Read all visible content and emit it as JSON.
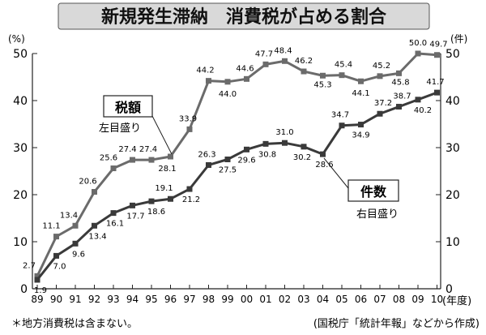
{
  "chart_data": {
    "type": "line",
    "title": "新規発生滞納　消費税が占める割合",
    "y_left_label": "(%)",
    "y_right_label": "(件)",
    "x_axis_unit": "(年度)",
    "ylim": [
      0,
      50
    ],
    "y_ticks": [
      "0",
      "10",
      "20",
      "30",
      "40",
      "50"
    ],
    "categories": [
      "89",
      "90",
      "91",
      "92",
      "93",
      "94",
      "95",
      "96",
      "97",
      "98",
      "99",
      "00",
      "01",
      "02",
      "03",
      "04",
      "05",
      "06",
      "07",
      "08",
      "09",
      "10"
    ],
    "series": [
      {
        "name": "税額",
        "axis_note": "左目盛り",
        "values": [
          2.7,
          11.1,
          13.4,
          20.6,
          25.6,
          27.4,
          27.4,
          28.1,
          33.9,
          44.2,
          44.0,
          44.6,
          47.7,
          48.4,
          46.2,
          45.3,
          45.4,
          44.1,
          45.2,
          45.8,
          50.0,
          49.7
        ],
        "labels": [
          "2.7",
          "11.1",
          "13.4",
          "20.6",
          "25.6",
          "27.4",
          "27.4",
          "28.1",
          "33.9",
          "44.2",
          "44.0",
          "44.6",
          "47.7",
          "48.4",
          "46.2",
          "45.3",
          "45.4",
          "44.1",
          "45.2",
          "45.8",
          "50.0",
          "49.7"
        ],
        "color": "#6b6b6b"
      },
      {
        "name": "件数",
        "axis_note": "右目盛り",
        "values": [
          1.9,
          7.0,
          9.6,
          13.4,
          16.1,
          17.7,
          18.6,
          19.1,
          21.2,
          26.3,
          27.5,
          29.6,
          30.8,
          31.0,
          30.2,
          28.6,
          34.7,
          34.9,
          37.2,
          38.7,
          40.2,
          41.7
        ],
        "labels": [
          "1.9",
          "7.0",
          "9.6",
          "13.4",
          "16.1",
          "17.7",
          "18.6",
          "19.1",
          "21.2",
          "26.3",
          "27.5",
          "29.6",
          "30.8",
          "31.0",
          "30.2",
          "28.6",
          "34.7",
          "34.9",
          "37.2",
          "38.7",
          "40.2",
          "41.7"
        ],
        "color": "#3a3a3a"
      }
    ],
    "grid": false,
    "legend_placement": "callout boxes"
  },
  "footer": {
    "note_left": "＊地方消費税は含まない。",
    "note_right": "(国税庁「統計年報」などから作成)"
  }
}
